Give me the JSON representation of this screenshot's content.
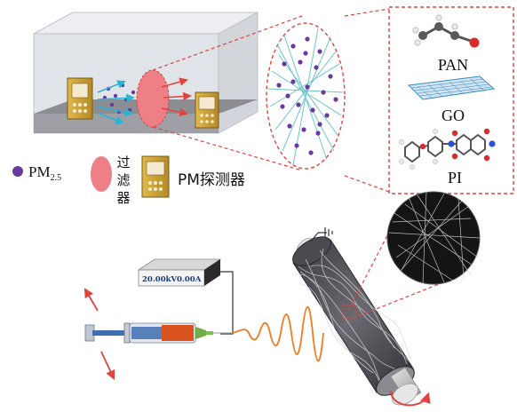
{
  "materials": {
    "pan": "PAN",
    "go": "GO",
    "pi": "PI"
  },
  "legend": {
    "pm_main": "PM",
    "pm_sub": "2.5",
    "filter_chars": [
      "过",
      "滤",
      "器"
    ],
    "detector": "PM探测器"
  },
  "power_supply": {
    "voltage": "20.00kV",
    "current": "0.00A"
  },
  "colors": {
    "particle": "#6a3a9a",
    "filter": "#ef7f86",
    "detector_gold": "#d4a83a",
    "dashed_red": "#e0443f",
    "cyan_arrow": "#2ab4d6",
    "jet": "#f07a1e",
    "drum": "#5d5d62"
  },
  "icons": [
    "particle-icon",
    "filter-icon",
    "pm-detector-icon",
    "ground-icon",
    "rotation-arrow-icon"
  ]
}
